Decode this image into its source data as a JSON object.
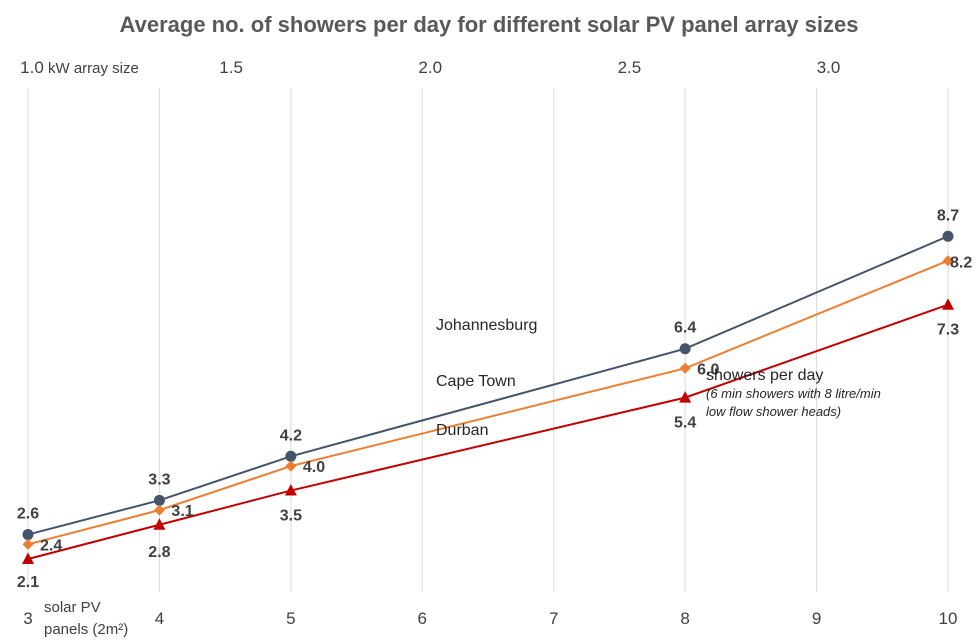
{
  "chart_data": {
    "type": "line",
    "title": "Average no. of showers per day for different solar PV panel array sizes",
    "x": [
      3,
      4,
      5,
      8,
      10
    ],
    "xlim": [
      3,
      10
    ],
    "x_ticks": [
      "3",
      "4",
      "5",
      "6",
      "7",
      "8",
      "9",
      "10"
    ],
    "xlabel_lines": [
      "solar PV",
      "panels (2m²)"
    ],
    "top_axis": {
      "label": "kW array size",
      "ticks": [
        "1.0",
        "1.5",
        "2.0",
        "2.5",
        "3.0"
      ]
    },
    "series": [
      {
        "name": "Johannesburg",
        "values": [
          2.6,
          3.3,
          4.2,
          6.4,
          8.7
        ],
        "color": "#44546a",
        "marker": "circle"
      },
      {
        "name": "Cape Town",
        "values": [
          2.4,
          3.1,
          4.0,
          6.0,
          8.2
        ],
        "color": "#ed7d31",
        "marker": "diamond"
      },
      {
        "name": "Durban",
        "values": [
          2.1,
          2.8,
          3.5,
          5.4,
          7.3
        ],
        "color": "#c00000",
        "marker": "triangle"
      }
    ],
    "data_labels": {
      "Johannesburg": [
        "2.6",
        "3.3",
        "4.2",
        "6.4",
        "8.7"
      ],
      "Cape Town": [
        "2.4",
        "3.1",
        "4.0",
        "6.0",
        "8.2"
      ],
      "Durban": [
        "2.1",
        "2.8",
        "3.5",
        "5.4",
        "7.3"
      ]
    },
    "annotation": {
      "line1": "showers per day",
      "line2": "(6 min showers with 8 litre/min",
      "line3": "low flow shower heads)"
    },
    "grid": "vertical",
    "legend": "inline labels"
  }
}
